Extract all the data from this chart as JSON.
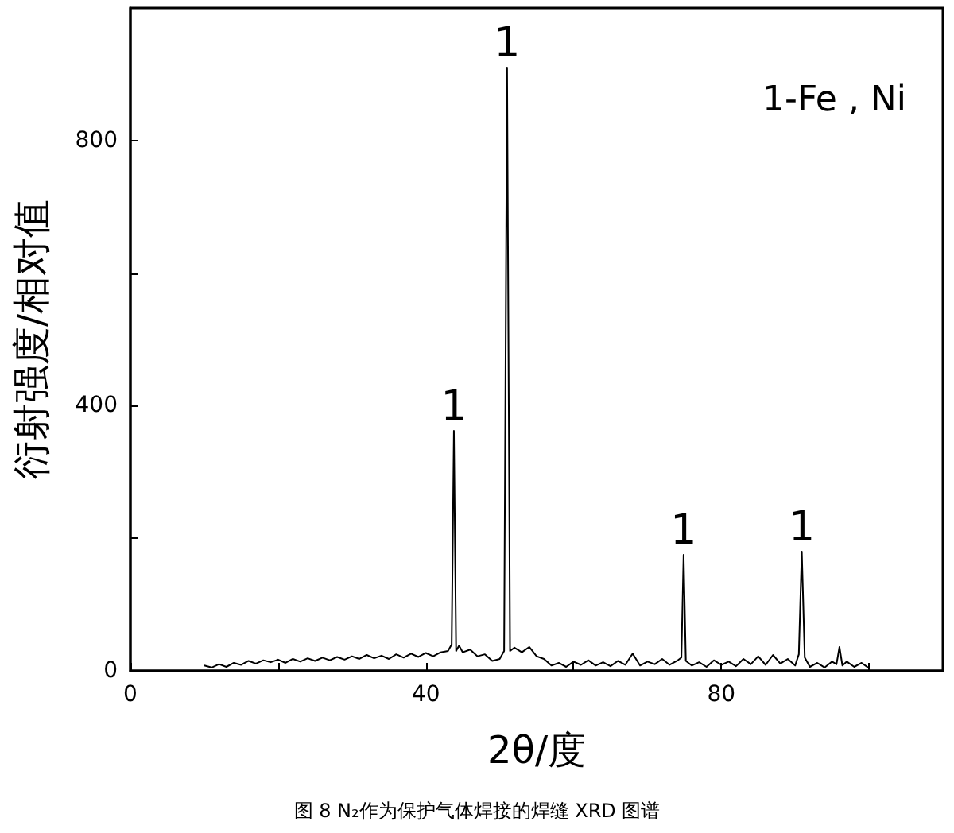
{
  "chart_data": {
    "type": "line",
    "xlabel": "2θ/度",
    "ylabel": "衍射强度/相对值",
    "annotations": [
      {
        "text": "1",
        "x": 43.8,
        "y": 362
      },
      {
        "text": "1",
        "x": 51,
        "y": 910
      },
      {
        "text": "1",
        "x": 74.9,
        "y": 175
      },
      {
        "text": "1",
        "x": 90.9,
        "y": 180
      },
      "1-Fe , Ni",
      "图 8 N₂作为保护气体焊接的焊缝 XRD 图谱"
    ],
    "series": [
      {
        "color": "#000000",
        "x": [
          10,
          11,
          12,
          13,
          14,
          15,
          16,
          17,
          18,
          19,
          20,
          21,
          22,
          23,
          24,
          25,
          26,
          27,
          28,
          29,
          30,
          31,
          32,
          33,
          34,
          35,
          36,
          37,
          38,
          39,
          40,
          41,
          42,
          43,
          43.5,
          43.8,
          44.1,
          44.5,
          45,
          46,
          47,
          48,
          49,
          50,
          50.6,
          51,
          51.4,
          52,
          53,
          54,
          55,
          56,
          57,
          58,
          59,
          60,
          61,
          62,
          63,
          64,
          65,
          66,
          67,
          68,
          69,
          70,
          71,
          72,
          73,
          74,
          74.6,
          74.9,
          75.2,
          76,
          77,
          78,
          79,
          80,
          81,
          82,
          83,
          84,
          85,
          86,
          87,
          88,
          89,
          90,
          90.5,
          90.9,
          91.3,
          92,
          93,
          94,
          95,
          95.6,
          96,
          96.4,
          97,
          98,
          99,
          100
        ],
        "values": [
          8,
          5,
          10,
          6,
          12,
          9,
          15,
          11,
          16,
          13,
          17,
          12,
          18,
          14,
          19,
          15,
          20,
          16,
          21,
          17,
          22,
          18,
          24,
          19,
          23,
          18,
          25,
          20,
          26,
          21,
          27,
          22,
          28,
          30,
          40,
          362,
          30,
          38,
          28,
          32,
          22,
          25,
          15,
          18,
          30,
          910,
          30,
          35,
          28,
          36,
          22,
          18,
          8,
          12,
          6,
          14,
          9,
          16,
          8,
          13,
          7,
          15,
          9,
          26,
          8,
          14,
          10,
          18,
          9,
          15,
          20,
          175,
          15,
          8,
          13,
          6,
          16,
          9,
          14,
          7,
          18,
          10,
          22,
          9,
          24,
          11,
          18,
          8,
          25,
          180,
          20,
          6,
          12,
          5,
          14,
          10,
          36,
          8,
          14,
          6,
          12,
          4
        ]
      }
    ],
    "xlim": [
      0,
      110
    ],
    "xticks": [
      0,
      {
        "value": 20,
        "label": null
      },
      40,
      {
        "value": 60,
        "label": null
      },
      80,
      {
        "value": 100,
        "label": null
      }
    ],
    "ylim": [
      0,
      1000
    ],
    "yticks": [
      0,
      {
        "value": 200,
        "label": null
      },
      400,
      {
        "value": 600,
        "label": null
      },
      800
    ],
    "grid": false,
    "marker": "none",
    "line_style": "solid"
  }
}
